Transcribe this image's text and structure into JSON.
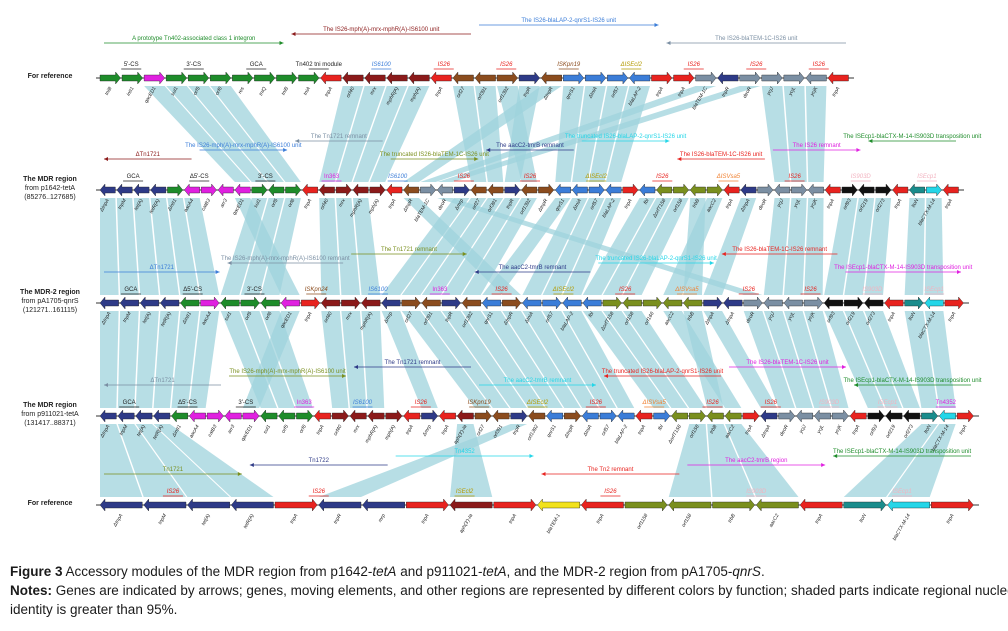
{
  "colors": {
    "navy": "#2e3a87",
    "green": "#1e8c2a",
    "magenta": "#e020e0",
    "darkred": "#8b1a1a",
    "red": "#e8231f",
    "brown": "#8b4c1e",
    "grayblue": "#7b8fa3",
    "blue": "#3b7dd8",
    "olive": "#7a8f1e",
    "orange": "#f08030",
    "yellow": "#f2e21c",
    "teal": "#1a8c8c",
    "cyan": "#24d6e8",
    "pink": "#f2b3c0",
    "black": "#111111",
    "shade": "#9fd3dc",
    "shadeRed": "#f7c9c4"
  },
  "rows": [
    {
      "id": "ref-top",
      "label_lines": [
        "For reference"
      ],
      "genes": [
        "tniB",
        "intI1",
        "qacED1",
        "sul1",
        "orf5",
        "orf6",
        "res",
        "tniQ",
        "tniB",
        "tniA",
        "tnpA",
        "orf40",
        "mrx",
        "mphR(A)",
        "mph(A)",
        "tnpA",
        "orf27",
        "orf391",
        "orf1392",
        "tnpR",
        "ΔtnpR",
        "qnrS1",
        "ΔtniA",
        "orf57",
        "blaLAP-2",
        "tnpA",
        "tnpA",
        "blaTEM-1C",
        "tnpR",
        "deoR",
        "ycjJ",
        "ycjL",
        "ycjK",
        "tnpA"
      ],
      "element_labels": [
        "5'-CS",
        "3'-CS",
        "GCA",
        "Tn402 tni module",
        "IS6100",
        "IS26",
        "IS26",
        "ISKpn19",
        "ΔISEcl2",
        "IS26",
        "IS26",
        "IS26"
      ],
      "unit_labels": [
        "A prototype Tn402-associated class 1 integron",
        "The IS26-mph(A)-mrx-mphR(A)-IS6100 unit",
        "The IS26-blaLAP-2-qnrS1-IS26 unit",
        "The IS26-blaTEM-1C-IS26 unit"
      ]
    },
    {
      "id": "p1642",
      "label_lines": [
        "The MDR region",
        "from p1642-tetA",
        "(85276..127685)"
      ],
      "genes": [
        "ΔtnpA",
        "tnpM",
        "tet(A)",
        "tetR(A)",
        "ΔintI1",
        "aacA4",
        "catB3",
        "arr3",
        "qacED1",
        "sul1",
        "orf5",
        "orf6",
        "tnpA",
        "orf40",
        "mrx",
        "mphR(A)",
        "mph(A)",
        "tnpA",
        "ΔtnpR",
        "blaTEM-1C",
        "deoR",
        "Δmrp",
        "orf27",
        "orf391",
        "tnpR",
        "orf1392",
        "ΔtnpR",
        "qnrS1",
        "ΔtniA",
        "orf57",
        "blaLAP-2",
        "tnpA",
        "fbl",
        "ΔorfT158",
        "orf158",
        "trbB",
        "aacC2",
        "tnpA",
        "ΔtnpA",
        "deoR",
        "ycjJ",
        "ycjL",
        "ycjK",
        "tnpA",
        "orf93",
        "orf219",
        "orf273",
        "tnpA",
        "ltoN",
        "blaCTX-M-14",
        "tnpA"
      ],
      "element_labels": [
        "GCA",
        "Δ5'-CS",
        "3'-CS",
        "In363",
        "IS6100",
        "IS26",
        "IS26",
        "ΔISEcl2",
        "IS26",
        "ΔISVsa5",
        "IS26",
        "IS903D",
        "ISEcp1"
      ],
      "unit_labels": [
        "ΔTn1721",
        "The IS26-mph(A)-mrx-mphR(A)-IS6100 unit",
        "The Tn1721 remnant",
        "The truncated IS26-blaTEM-1C-IS26 unit",
        "The aacC2-tmrB remnant",
        "The truncated IS26-blaLAP-2-qnrS1-IS26 unit",
        "The IS26-blaTEM-1C-IS26 unit",
        "The IS26 remnant",
        "The ISEcp1-blaCTX-M-14-IS903D transposition unit"
      ]
    },
    {
      "id": "pA1705",
      "label_lines": [
        "The MDR-2 region",
        "from pA1705-qnrS",
        "(121271..161115)"
      ],
      "genes": [
        "ΔtnpA",
        "tnpM",
        "tet(A)",
        "tetR(A)",
        "ΔintI1",
        "aacA4",
        "sul1",
        "orf5",
        "orf6",
        "qacED1",
        "tnpA",
        "orf40",
        "mrx",
        "mphR(A)",
        "Δmrp",
        "orf27",
        "orf391",
        "tnpR",
        "orf1392",
        "qnrS1",
        "ΔtnpR",
        "ΔtniA",
        "orf57",
        "blaLAP-2",
        "fbl",
        "ΔorfT158",
        "orf158",
        "orf166",
        "aacC2",
        "trbB",
        "ΔtnpA",
        "ΔtnpA",
        "deoR",
        "ycjJ",
        "ycjL",
        "ycjK",
        "orf93",
        "orf219",
        "orf273",
        "tnpA",
        "ltoN",
        "blaCTX-M-14",
        "tnpA"
      ],
      "element_labels": [
        "GCA",
        "Δ5'-CS",
        "3'-CS",
        "ISKpn24",
        "IS6100",
        "In363",
        "IS26",
        "ΔISEcl2",
        "IS26",
        "ΔISVsa5",
        "IS26",
        "IS26",
        "IS903D",
        "ISEcp1"
      ],
      "unit_labels": [
        "ΔTn1721",
        "The IS26-mph(A)-mrx-mphR(A)-IS6100 remnant",
        "The Tn1721 remnant",
        "The aacC2-tmrB remnant",
        "The truncated IS26-blaLAP-2-qnrS1-IS26 unit",
        "The IS26-blaTEM-1C-IS26 remnant",
        "The ISEcp1-blaCTX-M-14-IS903D transposition unit"
      ]
    },
    {
      "id": "p911021",
      "label_lines": [
        "The MDR region",
        "from p911021-tetA",
        "(131417..88371)"
      ],
      "genes": [
        "ΔtnpA",
        "tnpM",
        "tet(A)",
        "tetR(A)",
        "ΔintI1",
        "aacA4",
        "catB3",
        "arr3",
        "qacED1",
        "sul1",
        "orf5",
        "orf6",
        "tnpA",
        "orf40",
        "mrx",
        "mphR(A)",
        "mph(A)",
        "tnpA",
        "Δmrp",
        "tnpA",
        "aph(3')-Ia",
        "orf27",
        "orf391",
        "tnpR",
        "orf1392",
        "qnrS1",
        "ΔtnpR",
        "ΔtniA",
        "orf57",
        "blaLAP-2",
        "tnpA",
        "fbl",
        "ΔorfT158",
        "orf158",
        "trbB",
        "aacC2",
        "tnpA",
        "ΔtnpA",
        "deoR",
        "ycjJ",
        "ycjL",
        "ycjK",
        "tnpA",
        "orf93",
        "orf219",
        "orf273",
        "ltoN",
        "blaCTX-M-14",
        "tnpA"
      ],
      "element_labels": [
        "GCA",
        "Δ5'-CS",
        "3'-CS",
        "In363",
        "IS6100",
        "IS26",
        "ISKpn19",
        "ΔISEcl2",
        "IS26",
        "ΔISVsa5",
        "IS26",
        "IS26",
        "IS903D",
        "ISEcp1",
        "Tn4352"
      ],
      "unit_labels": [
        "ΔTn1721",
        "The IS26-mph(A)-mrx-mphR(A)-IS6100 unit",
        "The Tn1721 remnant",
        "The aacC2-tmrB remnant",
        "The truncated IS26-blaLAP-2-qnrS1-IS26 unit",
        "The IS26-blaTEM-1C-IS26 unit",
        "The ISEcp1-blaCTX-M-14-IS903D transposition unit"
      ]
    },
    {
      "id": "ref-bottom",
      "label_lines": [
        "For reference"
      ],
      "genes": [
        "ΔtnpA",
        "tnpM",
        "tet(A)",
        "tetR(A)",
        "tnpA",
        "tnpR",
        "mrp",
        "tnpA",
        "aph(3')-Ia",
        "tnpA",
        "blaTEM-1",
        "tnpA",
        "orf1158",
        "orf158",
        "trbB",
        "aacC2",
        "tnpA",
        "ltoN",
        "blaCTX-M-14",
        "tnpA"
      ],
      "element_labels": [
        "IS26",
        "IS26",
        "ISEcl2",
        "IS26",
        "IS903D",
        "ISEcp1"
      ],
      "unit_labels": [
        "Tn1721",
        "Tn1722",
        "Tn4352",
        "The Tn2 remnant",
        "The aacC2-tmrB region",
        "The ISEcp1-blaCTX-M-14-IS903D transposition unit"
      ]
    }
  ],
  "caption": {
    "figure_label": "Figure 3",
    "title_segments": [
      {
        "text": "Accessory modules of the MDR region from p1642-",
        "italic": false
      },
      {
        "text": "tetA",
        "italic": true
      },
      {
        "text": " and p911021-",
        "italic": false
      },
      {
        "text": "tetA",
        "italic": true
      },
      {
        "text": ", and the MDR-2 region from pA1705-",
        "italic": false
      },
      {
        "text": "qnrS",
        "italic": true
      },
      {
        "text": ".",
        "italic": false
      }
    ],
    "notes_label": "Notes:",
    "notes_line1": "Genes are indicated by arrows; genes, moving elements, and other regions are represented by different colors by function; shaded parts indicate regional nucleotide",
    "notes_line2": "identity is greater than 95%."
  }
}
